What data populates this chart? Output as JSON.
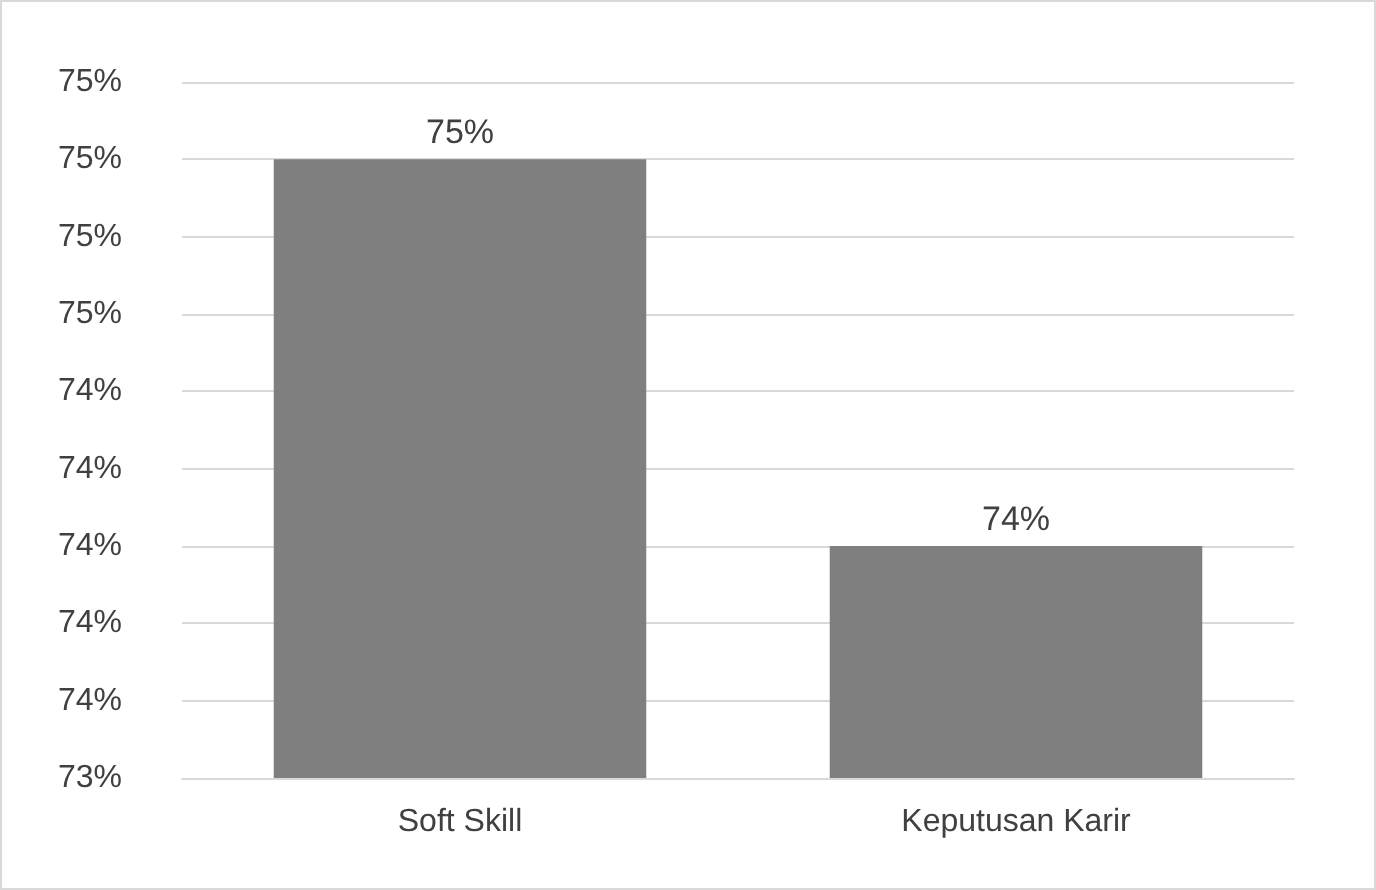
{
  "chart_data": {
    "type": "bar",
    "categories": [
      "Soft Skill",
      "Keputusan Karir"
    ],
    "values": [
      75.0,
      74.0
    ],
    "color": "#7f7f7f",
    "value_labels": [
      "75%",
      "74%"
    ],
    "ylim": [
      73.4,
      75.2
    ],
    "yticks": [
      {
        "value": 73.4,
        "label": "73%"
      },
      {
        "value": 73.6,
        "label": "74%"
      },
      {
        "value": 73.8,
        "label": "74%"
      },
      {
        "value": 74.0,
        "label": "74%"
      },
      {
        "value": 74.2,
        "label": "74%"
      },
      {
        "value": 74.4,
        "label": "74%"
      },
      {
        "value": 74.6,
        "label": "75%"
      },
      {
        "value": 74.8,
        "label": "75%"
      },
      {
        "value": 75.0,
        "label": "75%"
      },
      {
        "value": 75.2,
        "label": "75%"
      }
    ],
    "grid": true
  }
}
